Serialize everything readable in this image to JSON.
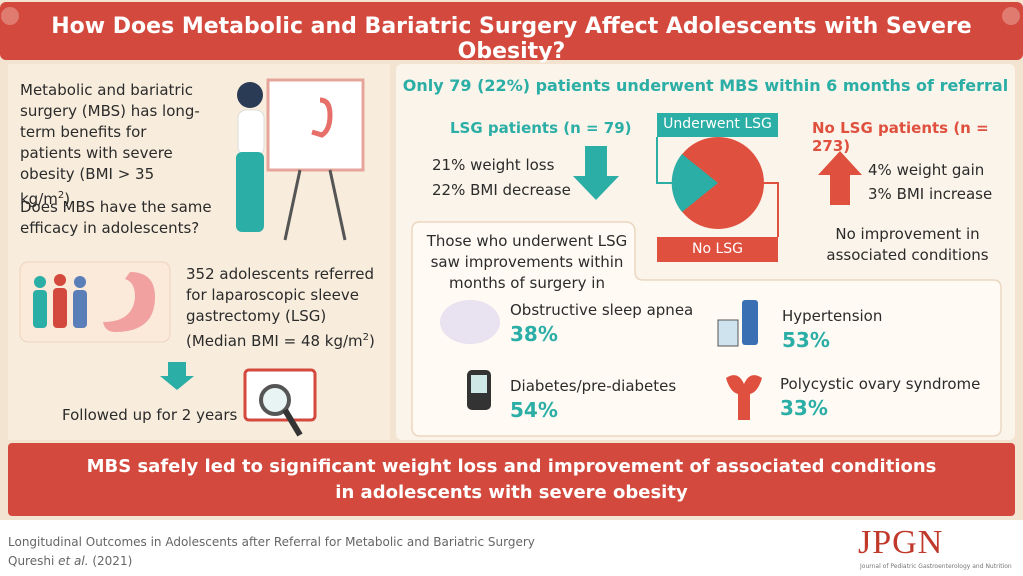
{
  "header": {
    "title": "How Does Metabolic and Bariatric Surgery Affect Adolescents with Severe Obesity?"
  },
  "left": {
    "intro": [
      "Metabolic and bariatric surgery (MBS) has long-term benefits for patients with severe obesity (BMI > 35 kg/m",
      "2",
      ")"
    ],
    "question": "Does MBS have the same efficacy in adolescents?",
    "cohort": [
      "352 adolescents referred for laparoscopic sleeve gastrectomy (LSG) (Median BMI = 48 kg/m",
      "2",
      ")"
    ],
    "followup": "Followed up for 2 years"
  },
  "right": {
    "headline": "Only 79 (22%) patients underwent MBS within 6 months of referral",
    "lsg": {
      "title": "LSG patients (n = 79)",
      "results": [
        "21% weight loss",
        "22% BMI decrease"
      ]
    },
    "pie": {
      "top": "Underwent LSG",
      "bottom": "No LSG"
    },
    "no_lsg": {
      "title": "No LSG patients (n = 273)",
      "results": [
        "4% weight gain",
        "3% BMI increase"
      ],
      "note": "No improvement in associated conditions"
    },
    "improvements": {
      "intro": "Those who underwent LSG saw improvements within months of surgery in",
      "conditions": [
        {
          "name": "Obstructive sleep apnea",
          "value": "38%"
        },
        {
          "name": "Hypertension",
          "value": "53%"
        },
        {
          "name": "Diabetes/pre-diabetes",
          "value": "54%"
        },
        {
          "name": "Polycystic ovary syndrome",
          "value": "33%"
        }
      ]
    }
  },
  "conclusion": [
    "MBS safely led to significant weight loss and improvement of associated conditions",
    "in adolescents with severe obesity"
  ],
  "footer": {
    "study": "Longitudinal Outcomes in Adolescents after Referral for Metabolic and Bariatric Surgery",
    "authors": "Qureshi",
    "et_al": "et al.",
    "year": "(2021)",
    "journal": "JPGN",
    "journal_full": "Journal of Pediatric Gastroenterology and Nutrition"
  }
}
